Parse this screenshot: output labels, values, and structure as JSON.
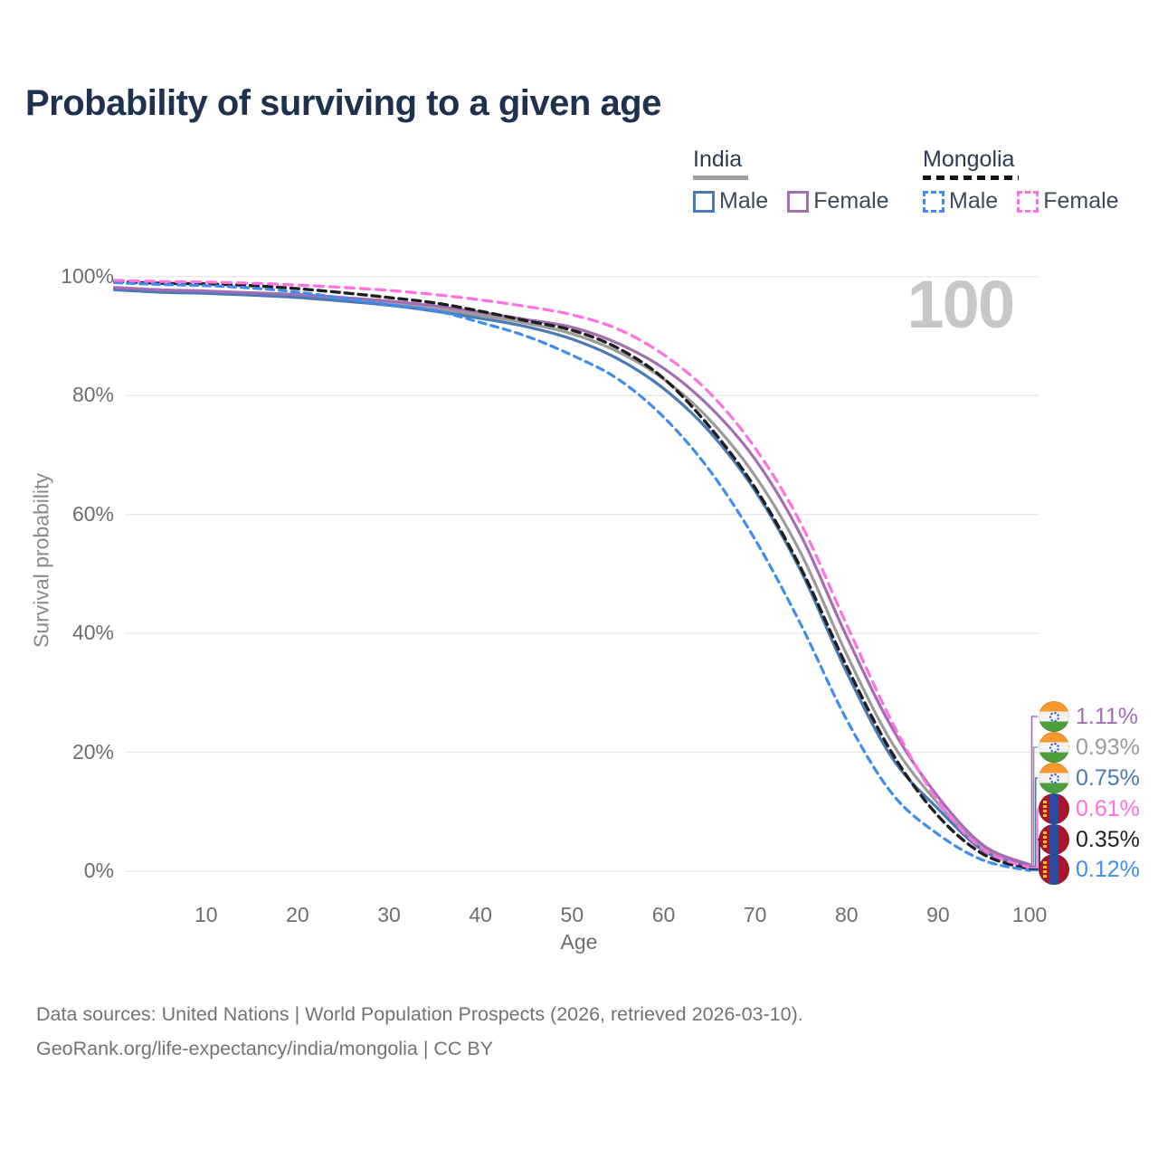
{
  "title": "Probability of surviving to a given age",
  "watermark": "100",
  "legend": {
    "groups": [
      {
        "label": "India",
        "line_style": "solid",
        "line_color": "#9e9e9e",
        "items": [
          {
            "label": "Male",
            "color": "#4a7ab5",
            "dashed": false
          },
          {
            "label": "Female",
            "color": "#a46cb3",
            "dashed": false
          }
        ]
      },
      {
        "label": "Mongolia",
        "line_style": "dashed",
        "line_color": "#1f1f1f",
        "items": [
          {
            "label": "Male",
            "color": "#3f8def",
            "dashed": true
          },
          {
            "label": "Female",
            "color": "#ff70e0",
            "dashed": true
          }
        ]
      }
    ]
  },
  "axes": {
    "y_title": "Survival probability",
    "x_title": "Age",
    "y_ticks": [
      "0%",
      "20%",
      "40%",
      "60%",
      "80%",
      "100%"
    ],
    "x_ticks": [
      10,
      20,
      30,
      40,
      50,
      60,
      70,
      80,
      90,
      100
    ]
  },
  "end_labels": [
    {
      "value": "1.11%",
      "country": "india",
      "series": "India Female",
      "color": "#a46cb3"
    },
    {
      "value": "0.93%",
      "country": "india",
      "series": "India",
      "color": "#9b9b9b"
    },
    {
      "value": "0.75%",
      "country": "india",
      "series": "India Male",
      "color": "#4a7ab5"
    },
    {
      "value": "0.61%",
      "country": "mongolia",
      "series": "Mongolia Female",
      "color": "#ff70e0"
    },
    {
      "value": "0.35%",
      "country": "mongolia",
      "series": "Mongolia",
      "color": "#1f1f1f"
    },
    {
      "value": "0.12%",
      "country": "mongolia",
      "series": "Mongolia Male",
      "color": "#3f8def"
    }
  ],
  "footer": {
    "line1": "Data sources: United Nations | World Population Prospects (2026, retrieved 2026-03-10).",
    "line2": "GeoRank.org/life-expectancy/india/mongolia | CC BY"
  },
  "chart_data": {
    "type": "line",
    "title": "Probability of surviving to a given age",
    "xlabel": "Age",
    "ylabel": "Survival probability",
    "xlim": [
      0,
      100
    ],
    "ylim": [
      0,
      100
    ],
    "grid": "horizontal",
    "legend_position": "top-right",
    "x": [
      0,
      5,
      10,
      15,
      20,
      25,
      30,
      35,
      40,
      45,
      50,
      55,
      60,
      65,
      70,
      75,
      80,
      85,
      90,
      95,
      100
    ],
    "series": [
      {
        "name": "India",
        "color": "#9b9b9b",
        "dash": null,
        "width": 3.2,
        "values": [
          98.0,
          97.6,
          97.4,
          97.1,
          96.7,
          96.2,
          95.5,
          94.6,
          93.5,
          92.2,
          90.4,
          87.4,
          82.8,
          76.0,
          66.5,
          53.5,
          36.5,
          21.5,
          11.4,
          3.8,
          0.93
        ]
      },
      {
        "name": "India Male",
        "color": "#4a7ab5",
        "dash": null,
        "width": 3.2,
        "values": [
          97.8,
          97.4,
          97.2,
          96.9,
          96.5,
          95.9,
          95.2,
          94.2,
          93.0,
          91.6,
          89.5,
          86.2,
          81.2,
          74.0,
          64.0,
          50.5,
          33.5,
          19.0,
          10.5,
          3.4,
          0.75
        ]
      },
      {
        "name": "India Female",
        "color": "#a46cb3",
        "dash": null,
        "width": 3.2,
        "values": [
          98.2,
          97.8,
          97.6,
          97.3,
          97.0,
          96.5,
          95.9,
          95.1,
          94.0,
          92.8,
          91.5,
          88.8,
          84.6,
          78.2,
          69.3,
          56.5,
          39.5,
          24.0,
          12.5,
          4.3,
          1.11
        ]
      },
      {
        "name": "Mongolia",
        "color": "#1f1f1f",
        "dash": "9 6",
        "width": 3.4,
        "values": [
          99.2,
          98.9,
          98.8,
          98.5,
          98.0,
          97.3,
          96.5,
          95.6,
          94.2,
          92.6,
          91.0,
          88.0,
          82.9,
          74.8,
          64.5,
          51.0,
          34.5,
          19.8,
          9.3,
          2.8,
          0.35
        ]
      },
      {
        "name": "Mongolia Male",
        "color": "#3f8def",
        "dash": "8 6",
        "width": 3.2,
        "values": [
          99.0,
          98.7,
          98.5,
          98.1,
          97.4,
          96.4,
          95.3,
          94.3,
          92.3,
          90.0,
          86.8,
          82.8,
          76.4,
          67.5,
          55.8,
          41.5,
          25.5,
          13.0,
          6.2,
          1.8,
          0.12
        ]
      },
      {
        "name": "Mongolia Female",
        "color": "#ff70e0",
        "dash": "10 7",
        "width": 3.2,
        "values": [
          99.4,
          99.2,
          99.1,
          98.9,
          98.6,
          98.2,
          97.7,
          97.0,
          96.1,
          95.0,
          93.6,
          91.2,
          86.9,
          80.5,
          71.2,
          58.5,
          41.5,
          25.0,
          11.8,
          3.6,
          0.61
        ]
      }
    ]
  }
}
